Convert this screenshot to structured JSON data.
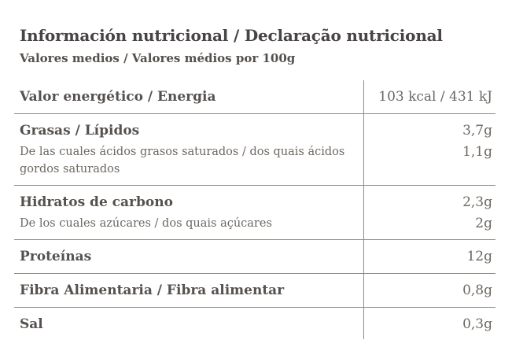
{
  "header": {
    "title": "Información nutricional / Declaração nutricional",
    "subtitle": "Valores medios / Valores médios por 100g"
  },
  "table": {
    "rows": [
      {
        "label": "Valor energético / Energia",
        "value": "103 kcal / 431 kJ"
      },
      {
        "label": "Grasas / Lípidos",
        "sublabel": "De las cuales ácidos grasos saturados / dos quais ácidos gordos saturados",
        "value": "3,7g",
        "subvalue": "1,1g"
      },
      {
        "label": "Hidratos de carbono",
        "sublabel": "De los cuales azúcares / dos quais açúcares",
        "value": "2,3g",
        "subvalue": "2g"
      },
      {
        "label": "Proteínas",
        "value": "12g"
      },
      {
        "label": "Fibra Alimentaria / Fibra alimentar",
        "value": "0,8g"
      },
      {
        "label": "Sal",
        "value": "0,3g"
      }
    ]
  },
  "colors": {
    "background": "#ffffff",
    "title_text": "#474443",
    "label_text": "#55514e",
    "body_text": "#6d6762",
    "divider": "#8f8c87"
  }
}
